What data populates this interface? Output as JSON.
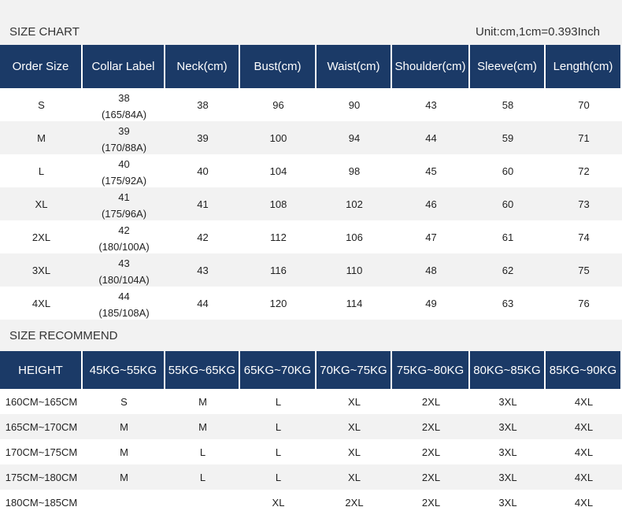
{
  "size_chart": {
    "title": "SIZE CHART",
    "unit": "Unit:cm,1cm=0.393Inch",
    "headers": [
      "Order Size",
      "Collar Label",
      "Neck(cm)",
      "Bust(cm)",
      "Waist(cm)",
      "Shoulder(cm)",
      "Sleeve(cm)",
      "Length(cm)"
    ],
    "rows": [
      {
        "size": "S",
        "collar": [
          "38",
          "(165/84A)"
        ],
        "values": [
          38,
          96,
          90,
          43,
          58,
          70
        ]
      },
      {
        "size": "M",
        "collar": [
          "39",
          "(170/88A)"
        ],
        "values": [
          39,
          100,
          94,
          44,
          59,
          71
        ]
      },
      {
        "size": "L",
        "collar": [
          "40",
          "(175/92A)"
        ],
        "values": [
          40,
          104,
          98,
          45,
          60,
          72
        ]
      },
      {
        "size": "XL",
        "collar": [
          "41",
          "(175/96A)"
        ],
        "values": [
          41,
          108,
          102,
          46,
          60,
          73
        ]
      },
      {
        "size": "2XL",
        "collar": [
          "42",
          "(180/100A)"
        ],
        "values": [
          42,
          112,
          106,
          47,
          61,
          74
        ]
      },
      {
        "size": "3XL",
        "collar": [
          "43",
          "(180/104A)"
        ],
        "values": [
          43,
          116,
          110,
          48,
          62,
          75
        ]
      },
      {
        "size": "4XL",
        "collar": [
          "44",
          "(185/108A)"
        ],
        "values": [
          44,
          120,
          114,
          49,
          63,
          76
        ]
      }
    ]
  },
  "size_recommend": {
    "title": "SIZE RECOMMEND",
    "headers": [
      "HEIGHT",
      "45KG~55KG",
      "55KG~65KG",
      "65KG~70KG",
      "70KG~75KG",
      "75KG~80KG",
      "80KG~85KG",
      "85KG~90KG"
    ],
    "rows": [
      [
        "160CM~165CM",
        "S",
        "M",
        "L",
        "XL",
        "2XL",
        "3XL",
        "4XL"
      ],
      [
        "165CM~170CM",
        "M",
        "M",
        "L",
        "XL",
        "2XL",
        "3XL",
        "4XL"
      ],
      [
        "170CM~175CM",
        "M",
        "L",
        "L",
        "XL",
        "2XL",
        "3XL",
        "4XL"
      ],
      [
        "175CM~180CM",
        "M",
        "L",
        "L",
        "XL",
        "2XL",
        "3XL",
        "4XL"
      ],
      [
        "180CM~185CM",
        null,
        null,
        "XL",
        "2XL",
        "2XL",
        "3XL",
        "4XL"
      ]
    ]
  }
}
